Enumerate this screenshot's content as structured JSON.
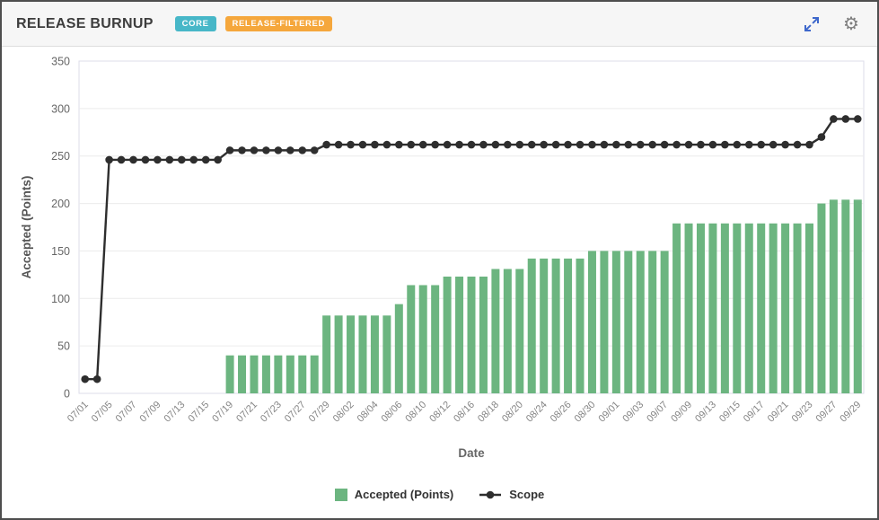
{
  "header": {
    "title": "RELEASE BURNUP",
    "badges": [
      {
        "label": "CORE",
        "color": "#47b7c8"
      },
      {
        "label": "RELEASE-FILTERED",
        "color": "#f5a73c"
      }
    ],
    "icons": [
      {
        "name": "expand-icon",
        "color": "#3e68cc"
      },
      {
        "name": "gear-icon",
        "glyph": "⚙",
        "color": "#7e7e7e"
      }
    ]
  },
  "chart_data": {
    "type": "bar",
    "title": "",
    "xlabel": "Date",
    "ylabel": "Accepted (Points)",
    "ylim": [
      0,
      350
    ],
    "ytick_interval": 50,
    "x_tick_every": 2,
    "grid": true,
    "legend_position": "bottom",
    "x": [
      "07/01",
      "07/02",
      "07/05",
      "07/06",
      "07/07",
      "07/08",
      "07/09",
      "07/12",
      "07/13",
      "07/14",
      "07/15",
      "07/16",
      "07/19",
      "07/20",
      "07/21",
      "07/22",
      "07/23",
      "07/26",
      "07/27",
      "07/28",
      "07/29",
      "07/30",
      "08/02",
      "08/03",
      "08/04",
      "08/05",
      "08/06",
      "08/09",
      "08/10",
      "08/11",
      "08/12",
      "08/13",
      "08/16",
      "08/17",
      "08/18",
      "08/19",
      "08/20",
      "08/23",
      "08/24",
      "08/25",
      "08/26",
      "08/27",
      "08/30",
      "08/31",
      "09/01",
      "09/02",
      "09/03",
      "09/06",
      "09/07",
      "09/08",
      "09/09",
      "09/10",
      "09/13",
      "09/14",
      "09/15",
      "09/16",
      "09/17",
      "09/20",
      "09/21",
      "09/22",
      "09/23",
      "09/24",
      "09/27",
      "09/28",
      "09/29"
    ],
    "series": [
      {
        "name": "Accepted (Points)",
        "type": "bar",
        "color": "#6cb580",
        "values": [
          0,
          0,
          0,
          0,
          0,
          0,
          0,
          0,
          0,
          0,
          0,
          0,
          40,
          40,
          40,
          40,
          40,
          40,
          40,
          40,
          82,
          82,
          82,
          82,
          82,
          82,
          94,
          114,
          114,
          114,
          123,
          123,
          123,
          123,
          131,
          131,
          131,
          142,
          142,
          142,
          142,
          142,
          150,
          150,
          150,
          150,
          150,
          150,
          150,
          179,
          179,
          179,
          179,
          179,
          179,
          179,
          179,
          179,
          179,
          179,
          179,
          200,
          204,
          204,
          204
        ]
      },
      {
        "name": "Scope",
        "type": "line",
        "marker": "circle",
        "color": "#2e2e2e",
        "values": [
          15,
          15,
          246,
          246,
          246,
          246,
          246,
          246,
          246,
          246,
          246,
          246,
          256,
          256,
          256,
          256,
          256,
          256,
          256,
          256,
          262,
          262,
          262,
          262,
          262,
          262,
          262,
          262,
          262,
          262,
          262,
          262,
          262,
          262,
          262,
          262,
          262,
          262,
          262,
          262,
          262,
          262,
          262,
          262,
          262,
          262,
          262,
          262,
          262,
          262,
          262,
          262,
          262,
          262,
          262,
          262,
          262,
          262,
          262,
          262,
          262,
          270,
          289,
          289,
          289
        ]
      }
    ]
  }
}
